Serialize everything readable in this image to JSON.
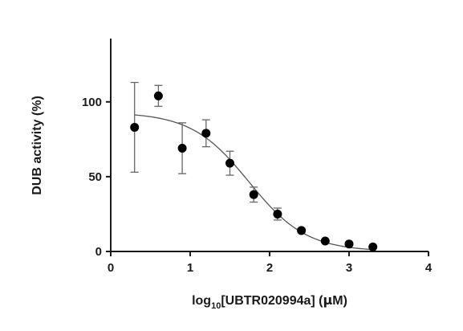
{
  "chart_data": {
    "type": "scatter",
    "title": "",
    "xlabel": {
      "prefix": "log",
      "subscript": "10",
      "suffix": "[UBTR020994a] (",
      "mu": "µ",
      "unit_end": "M)"
    },
    "ylabel": "DUB activity (%)",
    "xlim": [
      0,
      4
    ],
    "ylim": [
      0,
      145
    ],
    "x_ticks": [
      "0",
      "1",
      "2",
      "3",
      "4"
    ],
    "y_ticks": [
      "0",
      "50",
      "100"
    ],
    "grid": false,
    "series": [
      {
        "points": [
          {
            "x": 0.3,
            "y": 83,
            "err": 30
          },
          {
            "x": 0.6,
            "y": 104,
            "err": 7
          },
          {
            "x": 0.9,
            "y": 69,
            "err": 17
          },
          {
            "x": 1.2,
            "y": 79,
            "err": 9
          },
          {
            "x": 1.5,
            "y": 59,
            "err": 8
          },
          {
            "x": 1.8,
            "y": 38,
            "err": 5
          },
          {
            "x": 2.1,
            "y": 25,
            "err": 4
          },
          {
            "x": 2.4,
            "y": 14,
            "err": 1.5
          },
          {
            "x": 2.7,
            "y": 7,
            "err": 1
          },
          {
            "x": 3.0,
            "y": 5,
            "err": 1
          },
          {
            "x": 3.3,
            "y": 3,
            "err": 0.5
          }
        ]
      }
    ],
    "fit_curve": {
      "top": 93,
      "bottom": 0,
      "log_ic50": 1.74,
      "hill_slope": -1.2,
      "x_start": 0.3,
      "x_end": 3.3
    }
  }
}
